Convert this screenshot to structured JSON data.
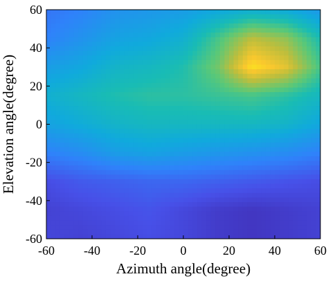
{
  "chart_data": {
    "type": "heatmap",
    "title": "",
    "xlabel": "Azimuth angle(degree)",
    "ylabel": "Elevation angle(degree)",
    "xlim": [
      -60,
      60
    ],
    "ylim": [
      -60,
      60
    ],
    "x_ticks": [
      -60,
      -40,
      -20,
      0,
      20,
      40,
      60
    ],
    "y_ticks": [
      -60,
      -40,
      -20,
      0,
      20,
      40,
      60
    ],
    "x_tick_labels": [
      "-60",
      "-40",
      "-20",
      "0",
      "20",
      "40",
      "60"
    ],
    "y_tick_labels": [
      "-60",
      "-40",
      "-20",
      "0",
      "20",
      "40",
      "60"
    ],
    "colormap": "parula",
    "grid": false,
    "peak": {
      "azimuth": 30,
      "elevation": 34
    },
    "grid_x": [
      -60,
      -45,
      -30,
      -15,
      0,
      15,
      30,
      45,
      60
    ],
    "grid_y": [
      60,
      45,
      30,
      15,
      0,
      -15,
      -30,
      -45,
      -60
    ],
    "values": [
      [
        0.26,
        0.3,
        0.36,
        0.38,
        0.4,
        0.44,
        0.47,
        0.45,
        0.38
      ],
      [
        0.3,
        0.36,
        0.42,
        0.44,
        0.48,
        0.62,
        0.78,
        0.72,
        0.55
      ],
      [
        0.4,
        0.44,
        0.5,
        0.52,
        0.56,
        0.68,
        0.93,
        0.84,
        0.62
      ],
      [
        0.48,
        0.52,
        0.56,
        0.58,
        0.58,
        0.6,
        0.62,
        0.58,
        0.52
      ],
      [
        0.42,
        0.46,
        0.5,
        0.52,
        0.52,
        0.52,
        0.52,
        0.5,
        0.44
      ],
      [
        0.3,
        0.34,
        0.4,
        0.42,
        0.4,
        0.38,
        0.36,
        0.34,
        0.3
      ],
      [
        0.14,
        0.18,
        0.2,
        0.22,
        0.22,
        0.2,
        0.18,
        0.16,
        0.14
      ],
      [
        0.1,
        0.12,
        0.14,
        0.16,
        0.12,
        0.08,
        0.06,
        0.08,
        0.1
      ],
      [
        0.12,
        0.1,
        0.12,
        0.14,
        0.12,
        0.08,
        0.06,
        0.08,
        0.1
      ]
    ]
  }
}
